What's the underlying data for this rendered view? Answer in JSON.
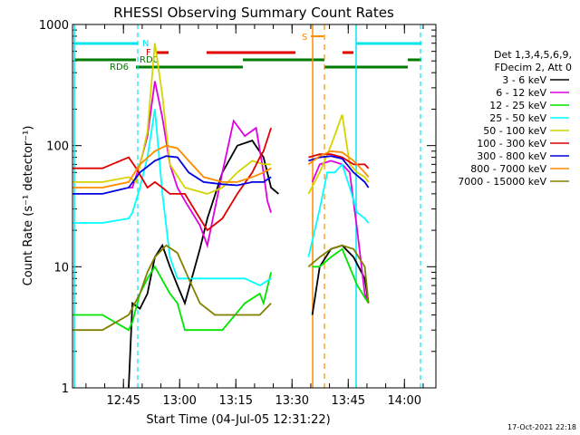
{
  "chart_data": {
    "type": "line",
    "title": "RHESSI Observing Summary Count Rates",
    "xlabel": "Start Time (04-Jul-05 12:31:22)",
    "ylabel": "Count Rate (s⁻¹ detector⁻¹)",
    "yscale": "log",
    "ylim": [
      1,
      1000
    ],
    "xlim_minutes": [
      0,
      97
    ],
    "x_ticks": [
      "12:45",
      "13:00",
      "13:15",
      "13:30",
      "13:45",
      "14:00"
    ],
    "y_ticks": [
      "1",
      "10",
      "100",
      "1000"
    ],
    "timestamp": "17-Oct-2021 22:18",
    "legend": {
      "header": [
        "Det 1,3,4,5,6,9,",
        "FDecim 2, Att 0"
      ],
      "placement": "right"
    },
    "flags": [
      {
        "label": "N",
        "color": "#00e5ee"
      },
      {
        "label": "F",
        "color": "#e00000"
      },
      {
        "label": "RD0",
        "color": "#007a00"
      },
      {
        "label": "RD6",
        "color": "#007a00"
      },
      {
        "label": "S",
        "color": "#ff8c00"
      }
    ],
    "series": [
      {
        "name": "3 - 6 keV",
        "color": "#000000",
        "points": [
          [
            15,
            0.5
          ],
          [
            16,
            5
          ],
          [
            18,
            4.5
          ],
          [
            20,
            6
          ],
          [
            22,
            12
          ],
          [
            24,
            15
          ],
          [
            26,
            10
          ],
          [
            28,
            7
          ],
          [
            30,
            5
          ],
          [
            34,
            14
          ],
          [
            36,
            25
          ],
          [
            40,
            60
          ],
          [
            44,
            100
          ],
          [
            48,
            110
          ],
          [
            51,
            80
          ],
          [
            53,
            45
          ],
          [
            55,
            40
          ],
          [
            58,
            null
          ],
          [
            62,
            null
          ],
          [
            64,
            4
          ],
          [
            66,
            10
          ],
          [
            69,
            14
          ],
          [
            72,
            15
          ],
          [
            75,
            12
          ],
          [
            78,
            8
          ],
          [
            79,
            5
          ]
        ]
      },
      {
        "name": "6 - 12 keV",
        "color": "#e000e0",
        "points": [
          [
            15,
            45
          ],
          [
            16,
            45
          ],
          [
            18,
            70
          ],
          [
            20,
            120
          ],
          [
            22,
            340
          ],
          [
            24,
            170
          ],
          [
            26,
            70
          ],
          [
            28,
            45
          ],
          [
            30,
            35
          ],
          [
            34,
            22
          ],
          [
            36,
            15
          ],
          [
            40,
            60
          ],
          [
            43,
            160
          ],
          [
            46,
            120
          ],
          [
            49,
            140
          ],
          [
            51,
            60
          ],
          [
            52,
            35
          ],
          [
            53,
            28
          ],
          [
            58,
            null
          ],
          [
            62,
            null
          ],
          [
            64,
            50
          ],
          [
            66,
            70
          ],
          [
            69,
            75
          ],
          [
            72,
            70
          ],
          [
            74,
            60
          ],
          [
            76,
            20
          ],
          [
            78,
            6
          ],
          [
            79,
            5
          ]
        ]
      },
      {
        "name": "12 - 25 keV",
        "color": "#00e600",
        "points": [
          [
            0,
            4
          ],
          [
            8,
            4
          ],
          [
            15,
            3
          ],
          [
            16,
            3.5
          ],
          [
            18,
            6
          ],
          [
            20,
            8
          ],
          [
            22,
            10
          ],
          [
            26,
            6
          ],
          [
            28,
            5
          ],
          [
            30,
            3
          ],
          [
            34,
            3
          ],
          [
            40,
            3
          ],
          [
            46,
            5
          ],
          [
            50,
            6
          ],
          [
            51,
            5
          ],
          [
            53,
            9
          ],
          [
            58,
            null
          ],
          [
            62,
            null
          ],
          [
            64,
            10
          ],
          [
            66,
            10
          ],
          [
            69,
            12
          ],
          [
            72,
            14
          ],
          [
            76,
            7
          ],
          [
            79,
            5
          ]
        ]
      },
      {
        "name": "25 - 50 keV",
        "color": "#00ffff",
        "points": [
          [
            0,
            23
          ],
          [
            8,
            23
          ],
          [
            15,
            25
          ],
          [
            16,
            28
          ],
          [
            18,
            45
          ],
          [
            20,
            80
          ],
          [
            22,
            200
          ],
          [
            24,
            40
          ],
          [
            26,
            12
          ],
          [
            28,
            8
          ],
          [
            34,
            8
          ],
          [
            40,
            8
          ],
          [
            46,
            8
          ],
          [
            50,
            7
          ],
          [
            53,
            8
          ],
          [
            58,
            null
          ],
          [
            62,
            null
          ],
          [
            63,
            12
          ],
          [
            66,
            30
          ],
          [
            68,
            60
          ],
          [
            70,
            60
          ],
          [
            72,
            70
          ],
          [
            74,
            45
          ],
          [
            76,
            28
          ],
          [
            78,
            25
          ],
          [
            79,
            23
          ]
        ]
      },
      {
        "name": "50 - 100 keV",
        "color": "#d4d400",
        "points": [
          [
            0,
            50
          ],
          [
            8,
            50
          ],
          [
            15,
            55
          ],
          [
            17,
            50
          ],
          [
            20,
            130
          ],
          [
            22,
            700
          ],
          [
            24,
            260
          ],
          [
            26,
            70
          ],
          [
            30,
            45
          ],
          [
            36,
            40
          ],
          [
            40,
            45
          ],
          [
            44,
            60
          ],
          [
            48,
            75
          ],
          [
            51,
            70
          ],
          [
            53,
            70
          ],
          [
            58,
            null
          ],
          [
            62,
            null
          ],
          [
            63,
            40
          ],
          [
            66,
            60
          ],
          [
            69,
            100
          ],
          [
            72,
            180
          ],
          [
            74,
            70
          ],
          [
            76,
            60
          ],
          [
            78,
            55
          ],
          [
            79,
            50
          ]
        ]
      },
      {
        "name": "100 - 300 keV",
        "color": "#e00000",
        "points": [
          [
            0,
            65
          ],
          [
            8,
            65
          ],
          [
            15,
            80
          ],
          [
            17,
            65
          ],
          [
            20,
            45
          ],
          [
            22,
            50
          ],
          [
            24,
            45
          ],
          [
            26,
            40
          ],
          [
            30,
            40
          ],
          [
            34,
            25
          ],
          [
            36,
            20
          ],
          [
            40,
            25
          ],
          [
            44,
            40
          ],
          [
            48,
            60
          ],
          [
            50,
            80
          ],
          [
            51,
            90
          ],
          [
            53,
            140
          ],
          [
            58,
            null
          ],
          [
            62,
            null
          ],
          [
            63,
            80
          ],
          [
            66,
            85
          ],
          [
            69,
            85
          ],
          [
            72,
            80
          ],
          [
            75,
            70
          ],
          [
            78,
            70
          ],
          [
            79,
            65
          ]
        ]
      },
      {
        "name": "300 - 800 keV",
        "color": "#0000e0",
        "points": [
          [
            0,
            40
          ],
          [
            8,
            40
          ],
          [
            15,
            45
          ],
          [
            18,
            60
          ],
          [
            22,
            75
          ],
          [
            25,
            82
          ],
          [
            28,
            80
          ],
          [
            31,
            60
          ],
          [
            35,
            50
          ],
          [
            40,
            48
          ],
          [
            44,
            47
          ],
          [
            48,
            50
          ],
          [
            51,
            50
          ],
          [
            53,
            55
          ],
          [
            58,
            null
          ],
          [
            62,
            null
          ],
          [
            63,
            75
          ],
          [
            66,
            80
          ],
          [
            69,
            82
          ],
          [
            72,
            78
          ],
          [
            75,
            60
          ],
          [
            78,
            50
          ],
          [
            79,
            45
          ]
        ]
      },
      {
        "name": "800 - 7000 keV",
        "color": "#ff8c00",
        "points": [
          [
            0,
            45
          ],
          [
            8,
            45
          ],
          [
            15,
            50
          ],
          [
            18,
            70
          ],
          [
            22,
            90
          ],
          [
            25,
            100
          ],
          [
            28,
            95
          ],
          [
            31,
            75
          ],
          [
            35,
            55
          ],
          [
            40,
            50
          ],
          [
            44,
            50
          ],
          [
            48,
            55
          ],
          [
            51,
            60
          ],
          [
            53,
            65
          ],
          [
            58,
            null
          ],
          [
            62,
            null
          ],
          [
            63,
            70
          ],
          [
            66,
            82
          ],
          [
            69,
            90
          ],
          [
            72,
            88
          ],
          [
            75,
            75
          ],
          [
            78,
            60
          ],
          [
            79,
            55
          ]
        ]
      },
      {
        "name": "7000 - 15000 keV",
        "color": "#808000",
        "points": [
          [
            0,
            3
          ],
          [
            8,
            3
          ],
          [
            15,
            4
          ],
          [
            18,
            6
          ],
          [
            20,
            9
          ],
          [
            22,
            12
          ],
          [
            25,
            15
          ],
          [
            28,
            13
          ],
          [
            31,
            8
          ],
          [
            34,
            5
          ],
          [
            38,
            4
          ],
          [
            42,
            4
          ],
          [
            46,
            4
          ],
          [
            50,
            4
          ],
          [
            53,
            5
          ],
          [
            58,
            null
          ],
          [
            62,
            null
          ],
          [
            63,
            10
          ],
          [
            66,
            12
          ],
          [
            69,
            14
          ],
          [
            72,
            15
          ],
          [
            75,
            14
          ],
          [
            78,
            10
          ],
          [
            79,
            5
          ]
        ]
      }
    ]
  }
}
